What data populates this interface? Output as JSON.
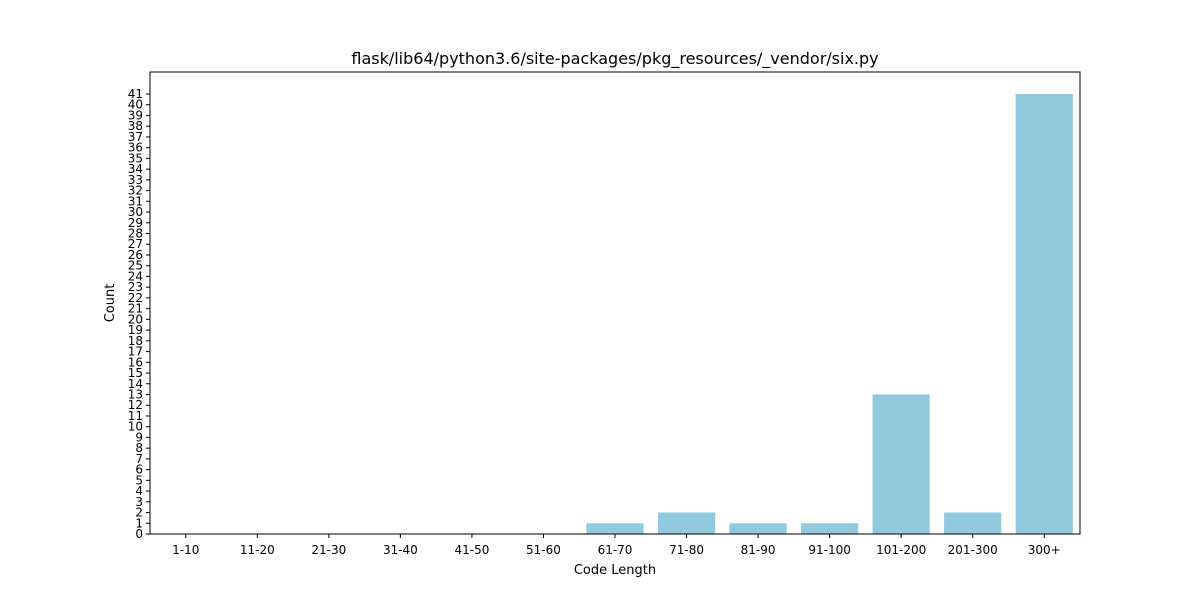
{
  "chart_data": {
    "type": "bar",
    "title": "flask/lib64/python3.6/site-packages/pkg_resources/_vendor/six.py",
    "xlabel": "Code Length",
    "ylabel": "Count",
    "categories": [
      "1-10",
      "11-20",
      "21-30",
      "31-40",
      "41-50",
      "51-60",
      "61-70",
      "71-80",
      "81-90",
      "91-100",
      "101-200",
      "201-300",
      "300+"
    ],
    "values": [
      0,
      0,
      0,
      0,
      0,
      0,
      1,
      2,
      1,
      1,
      13,
      2,
      41
    ],
    "ylim": [
      0,
      41
    ],
    "grid": false,
    "bar_color": "#92c9de"
  }
}
